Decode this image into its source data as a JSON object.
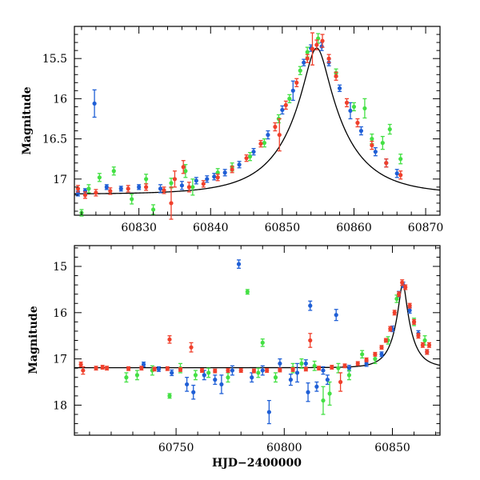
{
  "colors": {
    "blue": "#1f5fd6",
    "green": "#44e044",
    "red": "#f0402c",
    "model": "#000000"
  },
  "chart_data": [
    {
      "type": "scatter",
      "title": "",
      "xlabel": "",
      "ylabel": "Magnitude",
      "xlim": [
        60821,
        60872
      ],
      "ylim": [
        17.45,
        15.1
      ],
      "y_inverted": true,
      "grid": false,
      "xticks": [
        60830,
        60840,
        60850,
        60860,
        60870
      ],
      "yticks": [
        15.5,
        16,
        16.5,
        17
      ],
      "ytick_labels": [
        "15.5",
        "16",
        "16.5",
        "17"
      ],
      "model_curve": {
        "t0": 60854.8,
        "u0": 0.1895,
        "tE": 8.06,
        "base_mag": 17.19
      },
      "series": [
        {
          "color": "blue",
          "points": [
            [
              60821.5,
              17.18,
              0.03
            ],
            [
              60822.5,
              17.15,
              0.03
            ],
            [
              60823.8,
              16.06,
              0.17
            ],
            [
              60825.5,
              17.1,
              0.03
            ],
            [
              60827.5,
              17.12,
              0.03
            ],
            [
              60830,
              17.1,
              0.03
            ],
            [
              60833,
              17.12,
              0.05
            ],
            [
              60836,
              17.08,
              0.05
            ],
            [
              60838,
              17.02,
              0.04
            ],
            [
              60839.5,
              17.0,
              0.04
            ],
            [
              60840.5,
              16.97,
              0.04
            ],
            [
              60842,
              16.92,
              0.04
            ],
            [
              60844,
              16.82,
              0.04
            ],
            [
              60846,
              16.66,
              0.04
            ],
            [
              60848,
              16.45,
              0.05
            ],
            [
              60850,
              16.14,
              0.05
            ],
            [
              60851.5,
              15.9,
              0.12
            ],
            [
              60853,
              15.55,
              0.04
            ],
            [
              60854,
              15.37,
              0.04
            ],
            [
              60855.5,
              15.35,
              0.05
            ],
            [
              60856.5,
              15.55,
              0.04
            ],
            [
              60858,
              15.87,
              0.04
            ],
            [
              60859.5,
              16.15,
              0.1
            ],
            [
              60861,
              16.4,
              0.05
            ],
            [
              60863,
              16.66,
              0.05
            ],
            [
              60864.5,
              16.8,
              0.05
            ],
            [
              60866,
              16.93,
              0.05
            ]
          ]
        },
        {
          "color": "green",
          "points": [
            [
              60822,
              17.42,
              0.04
            ],
            [
              60823,
              17.12,
              0.05
            ],
            [
              60824.5,
              16.98,
              0.05
            ],
            [
              60826.5,
              16.9,
              0.05
            ],
            [
              60829,
              17.25,
              0.06
            ],
            [
              60831,
              17.0,
              0.06
            ],
            [
              60832,
              17.38,
              0.06
            ],
            [
              60834.5,
              17.05,
              0.06
            ],
            [
              60836.5,
              16.9,
              0.08
            ],
            [
              60837.5,
              17.1,
              0.1
            ],
            [
              60841,
              16.92,
              0.05
            ],
            [
              60843,
              16.85,
              0.05
            ],
            [
              60845.5,
              16.72,
              0.05
            ],
            [
              60847.5,
              16.55,
              0.05
            ],
            [
              60849.5,
              16.25,
              0.05
            ],
            [
              60851,
              16.0,
              0.05
            ],
            [
              60852.5,
              15.65,
              0.05
            ],
            [
              60853.5,
              15.42,
              0.06
            ],
            [
              60855,
              15.25,
              0.06
            ],
            [
              60857.5,
              15.68,
              0.05
            ],
            [
              60860,
              16.1,
              0.05
            ],
            [
              60861.5,
              16.12,
              0.12
            ],
            [
              60862.5,
              16.5,
              0.06
            ],
            [
              60864,
              16.55,
              0.08
            ],
            [
              60865,
              16.38,
              0.06
            ],
            [
              60866.5,
              16.75,
              0.06
            ]
          ]
        },
        {
          "color": "red",
          "points": [
            [
              60821.5,
              17.12,
              0.04
            ],
            [
              60822.5,
              17.2,
              0.04
            ],
            [
              60824,
              17.17,
              0.04
            ],
            [
              60826,
              17.15,
              0.04
            ],
            [
              60828.5,
              17.12,
              0.04
            ],
            [
              60831,
              17.1,
              0.04
            ],
            [
              60833.5,
              17.14,
              0.04
            ],
            [
              60834.5,
              17.3,
              0.2
            ],
            [
              60835,
              17.0,
              0.1
            ],
            [
              60836.2,
              16.85,
              0.08
            ],
            [
              60837,
              17.1,
              0.06
            ],
            [
              60839,
              17.06,
              0.04
            ],
            [
              60841,
              16.98,
              0.04
            ],
            [
              60843,
              16.88,
              0.04
            ],
            [
              60845,
              16.74,
              0.04
            ],
            [
              60847,
              16.56,
              0.04
            ],
            [
              60849,
              16.35,
              0.05
            ],
            [
              60849.6,
              16.45,
              0.2
            ],
            [
              60850.5,
              16.08,
              0.05
            ],
            [
              60852,
              15.8,
              0.05
            ],
            [
              60853.5,
              15.5,
              0.05
            ],
            [
              60854.2,
              15.38,
              0.2
            ],
            [
              60854.8,
              15.33,
              0.06
            ],
            [
              60855.6,
              15.28,
              0.08
            ],
            [
              60856.5,
              15.5,
              0.05
            ],
            [
              60857.5,
              15.72,
              0.05
            ],
            [
              60859,
              16.05,
              0.05
            ],
            [
              60860.5,
              16.3,
              0.05
            ],
            [
              60862.5,
              16.58,
              0.05
            ],
            [
              60864.5,
              16.8,
              0.05
            ],
            [
              60866.5,
              16.95,
              0.05
            ]
          ]
        }
      ]
    },
    {
      "type": "scatter",
      "title": "",
      "xlabel": "HJD−2400000",
      "ylabel": "Magnitude",
      "xlim": [
        60703,
        60872
      ],
      "ylim": [
        18.65,
        14.55
      ],
      "y_inverted": true,
      "grid": false,
      "xticks": [
        60750,
        60800,
        60850
      ],
      "yticks": [
        15,
        16,
        17,
        18
      ],
      "ytick_labels": [
        "15",
        "16",
        "17",
        "18"
      ],
      "model_curve": {
        "t0": 60854.8,
        "u0": 0.1895,
        "tE": 8.06,
        "base_mag": 17.19
      },
      "series": [
        {
          "color": "blue",
          "points": [
            [
              60735,
              17.12,
              0.05
            ],
            [
              60742,
              17.22,
              0.05
            ],
            [
              60748,
              17.3,
              0.06
            ],
            [
              60755,
              17.55,
              0.15
            ],
            [
              60758,
              17.72,
              0.15
            ],
            [
              60763,
              17.35,
              0.1
            ],
            [
              60768,
              17.45,
              0.1
            ],
            [
              60771,
              17.55,
              0.2
            ],
            [
              60776,
              17.25,
              0.1
            ],
            [
              60779,
              14.95,
              0.09
            ],
            [
              60785,
              17.4,
              0.1
            ],
            [
              60790,
              17.25,
              0.1
            ],
            [
              60793,
              18.15,
              0.25
            ],
            [
              60798,
              17.1,
              0.1
            ],
            [
              60803,
              17.45,
              0.12
            ],
            [
              60806,
              17.3,
              0.2
            ],
            [
              60810,
              17.1,
              0.08
            ],
            [
              60811,
              17.72,
              0.2
            ],
            [
              60812,
              15.85,
              0.1
            ],
            [
              60815,
              17.6,
              0.1
            ],
            [
              60818,
              17.25,
              0.08
            ],
            [
              60820,
              17.45,
              0.1
            ],
            [
              60824,
              16.05,
              0.12
            ],
            [
              60830,
              17.2,
              0.06
            ],
            [
              60838,
              17.1,
              0.06
            ],
            [
              60845,
              16.9,
              0.05
            ],
            [
              60850,
              16.35,
              0.06
            ],
            [
              60853,
              15.6,
              0.06
            ],
            [
              60855,
              15.4,
              0.06
            ],
            [
              60858,
              15.95,
              0.06
            ],
            [
              60862,
              16.45,
              0.06
            ],
            [
              60866,
              16.85,
              0.05
            ]
          ]
        },
        {
          "color": "green",
          "points": [
            [
              60727,
              17.4,
              0.1
            ],
            [
              60732,
              17.35,
              0.1
            ],
            [
              60739,
              17.25,
              0.1
            ],
            [
              60747,
              17.8,
              0.05
            ],
            [
              60752,
              17.2,
              0.1
            ],
            [
              60759,
              17.35,
              0.1
            ],
            [
              60765,
              17.3,
              0.1
            ],
            [
              60774,
              17.4,
              0.1
            ],
            [
              60783,
              15.55,
              0.05
            ],
            [
              60788,
              17.3,
              0.1
            ],
            [
              60790,
              16.65,
              0.08
            ],
            [
              60796,
              17.4,
              0.1
            ],
            [
              60804,
              17.2,
              0.1
            ],
            [
              60808,
              17.1,
              0.1
            ],
            [
              60814,
              17.15,
              0.1
            ],
            [
              60818,
              17.9,
              0.3
            ],
            [
              60821,
              17.75,
              0.25
            ],
            [
              60825,
              17.2,
              0.1
            ],
            [
              60830,
              17.35,
              0.1
            ],
            [
              60836,
              16.9,
              0.08
            ],
            [
              60842,
              17.0,
              0.1
            ],
            [
              60848,
              16.6,
              0.08
            ],
            [
              60852,
              15.7,
              0.08
            ],
            [
              60860,
              16.2,
              0.08
            ],
            [
              60865,
              16.6,
              0.1
            ]
          ]
        },
        {
          "color": "red",
          "points": [
            [
              60706,
              17.12,
              0.05
            ],
            [
              60707,
              17.25,
              0.08
            ],
            [
              60713,
              17.2,
              0.04
            ],
            [
              60716,
              17.18,
              0.04
            ],
            [
              60718,
              17.2,
              0.04
            ],
            [
              60728,
              17.21,
              0.04
            ],
            [
              60734,
              17.2,
              0.04
            ],
            [
              60740,
              17.22,
              0.04
            ],
            [
              60746,
              17.21,
              0.04
            ],
            [
              60747,
              16.58,
              0.08
            ],
            [
              60752,
              17.23,
              0.04
            ],
            [
              60757,
              16.75,
              0.1
            ],
            [
              60762,
              17.25,
              0.04
            ],
            [
              60768,
              17.26,
              0.04
            ],
            [
              60774,
              17.25,
              0.04
            ],
            [
              60780,
              17.25,
              0.04
            ],
            [
              60786,
              17.26,
              0.04
            ],
            [
              60792,
              17.25,
              0.04
            ],
            [
              60798,
              17.24,
              0.04
            ],
            [
              60804,
              17.23,
              0.04
            ],
            [
              60810,
              17.22,
              0.04
            ],
            [
              60812,
              16.6,
              0.15
            ],
            [
              60816,
              17.2,
              0.04
            ],
            [
              60822,
              17.18,
              0.04
            ],
            [
              60826,
              17.5,
              0.2
            ],
            [
              60828,
              17.15,
              0.04
            ],
            [
              60834,
              17.1,
              0.04
            ],
            [
              60838,
              17.02,
              0.04
            ],
            [
              60842,
              16.9,
              0.04
            ],
            [
              60845,
              16.75,
              0.04
            ],
            [
              60847,
              16.6,
              0.04
            ],
            [
              60849,
              16.35,
              0.05
            ],
            [
              60851,
              16.0,
              0.05
            ],
            [
              60853,
              15.6,
              0.05
            ],
            [
              60854.5,
              15.35,
              0.06
            ],
            [
              60856,
              15.45,
              0.05
            ],
            [
              60858,
              15.85,
              0.05
            ],
            [
              60860,
              16.2,
              0.05
            ],
            [
              60862,
              16.5,
              0.05
            ],
            [
              60864,
              16.7,
              0.05
            ],
            [
              60866,
              16.85,
              0.05
            ],
            [
              60867,
              16.7,
              0.05
            ]
          ]
        }
      ]
    }
  ]
}
